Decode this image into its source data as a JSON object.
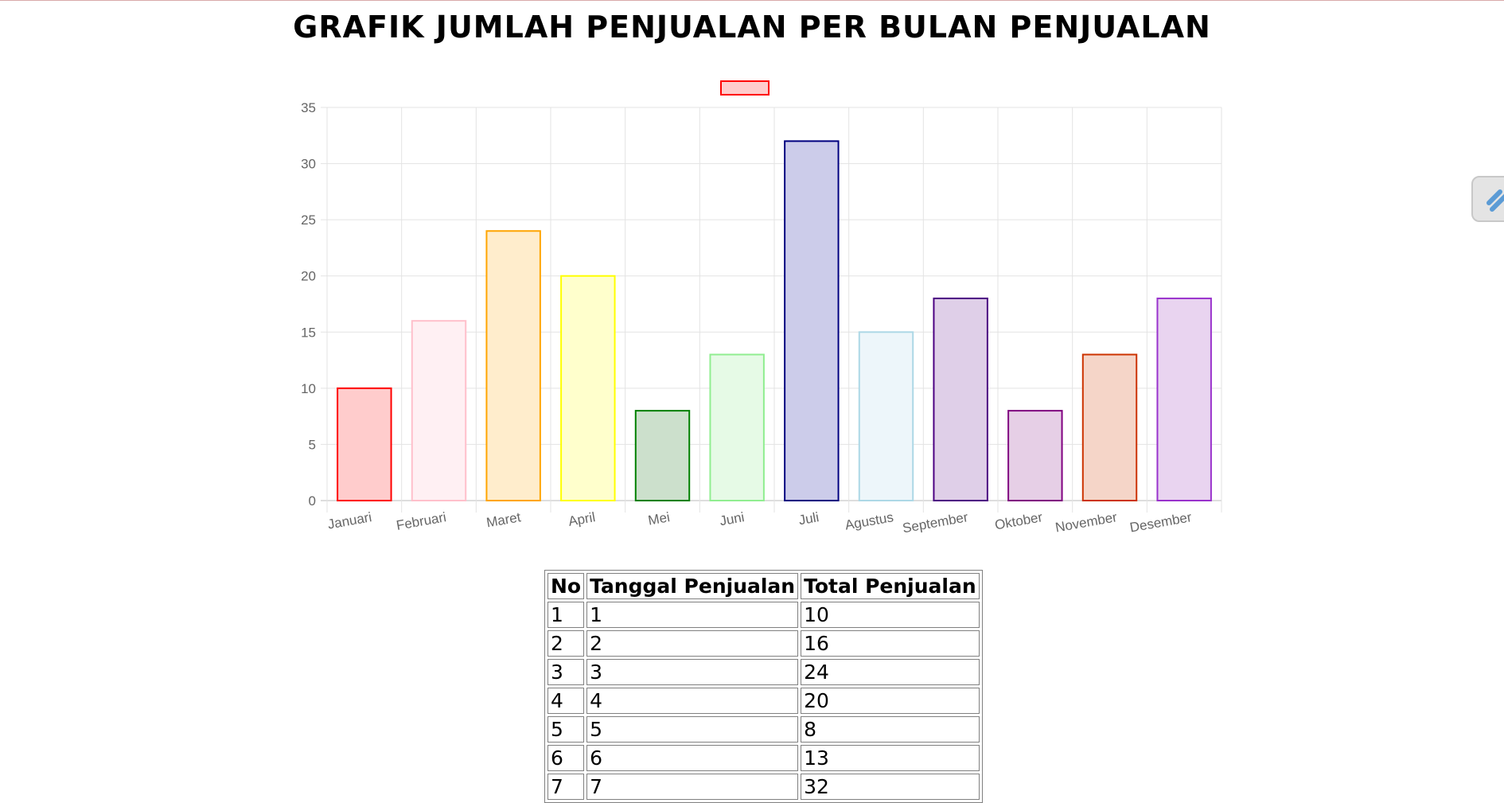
{
  "page": {
    "title": "GRAFIK JUMLAH PENJUALAN PER BULAN PENJUALAN"
  },
  "chart_data": {
    "type": "bar",
    "title": "",
    "xlabel": "",
    "ylabel": "",
    "ylim": [
      0,
      35
    ],
    "yticks": [
      "0",
      "5",
      "10",
      "15",
      "20",
      "25",
      "30",
      "35"
    ],
    "grid": true,
    "legend": {
      "position": "top",
      "label": ""
    },
    "categories": [
      "Januari",
      "Februari",
      "Maret",
      "April",
      "Mei",
      "Juni",
      "Juli",
      "Agustus",
      "September",
      "Oktober",
      "November",
      "Desember"
    ],
    "series": [
      {
        "name": "",
        "values": [
          10,
          16,
          24,
          20,
          8,
          13,
          32,
          15,
          18,
          8,
          13,
          18
        ]
      }
    ],
    "colors": {
      "fills": [
        "#ffcccc",
        "#fff0f3",
        "#ffedcc",
        "#ffffcc",
        "#cce0cc",
        "#e6fae6",
        "#ccccea",
        "#edf6fa",
        "#dfcfe8",
        "#e6cfe6",
        "#f5d5c8",
        "#e9d4f0"
      ],
      "borders": [
        "#ff0000",
        "#ffc0cb",
        "#ffa500",
        "#ffff00",
        "#008000",
        "#90ee90",
        "#000080",
        "#add8e6",
        "#4b0082",
        "#800080",
        "#cc3300",
        "#9932cc"
      ],
      "legend_fill": "#ffcccc",
      "legend_border": "#ff0000"
    }
  },
  "table": {
    "headers": [
      "No",
      "Tanggal Penjualan",
      "Total Penjualan"
    ],
    "rows": [
      [
        "1",
        "1",
        "10"
      ],
      [
        "2",
        "2",
        "16"
      ],
      [
        "3",
        "3",
        "24"
      ],
      [
        "4",
        "4",
        "20"
      ],
      [
        "5",
        "5",
        "8"
      ],
      [
        "6",
        "6",
        "13"
      ],
      [
        "7",
        "7",
        "32"
      ]
    ]
  },
  "icons": {
    "side_handle": "resize-handle-icon"
  }
}
